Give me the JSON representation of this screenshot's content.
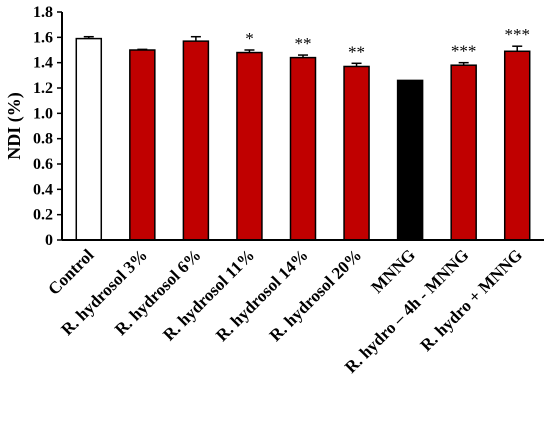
{
  "chart_data": {
    "type": "bar",
    "title": "",
    "xlabel": "",
    "ylabel": "NDI (%)",
    "ylim": [
      0,
      1.8
    ],
    "yticks": [
      "0",
      "0.2",
      "0.4",
      "0.6",
      "0.8",
      "1.0",
      "1.2",
      "1.4",
      "1.6",
      "1.8"
    ],
    "categories": [
      "Control",
      "R. hydrosol 3%",
      "R. hydrosol 6%",
      "R. hydrosol 11%",
      "R. hydrosol 14%",
      "R. hydrosol 20%",
      "MNNG",
      "R. hydro – 4h - MNNG",
      "R. hydro + MNNG"
    ],
    "values": [
      1.59,
      1.5,
      1.57,
      1.48,
      1.44,
      1.37,
      1.26,
      1.38,
      1.49
    ],
    "errors": [
      0.015,
      0.005,
      0.035,
      0.02,
      0.02,
      0.025,
      0.0,
      0.02,
      0.04
    ],
    "annotations": [
      "",
      "",
      "",
      "*",
      "**",
      "**",
      "",
      "***",
      "***"
    ],
    "colors": [
      "#ffffff",
      "#c00000",
      "#c00000",
      "#c00000",
      "#c00000",
      "#c00000",
      "#000000",
      "#c00000",
      "#c00000"
    ],
    "grid": false,
    "legend": "none"
  }
}
